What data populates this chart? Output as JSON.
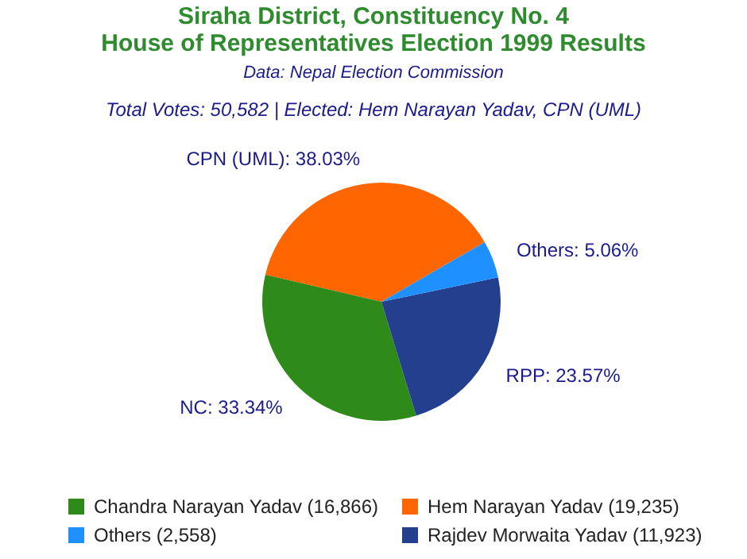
{
  "chart_data": {
    "type": "pie",
    "title": "Siraha District, Constituency No. 4\nHouse of Representatives Election 1999 Results",
    "annotations": [
      "Data: Nepal Election Commission",
      "Total Votes: 50,582 | Elected: Hem Narayan Yadav, CPN (UML)"
    ],
    "categories": [
      "Hem Narayan Yadav (19,235)",
      "Chandra Narayan Yadav (16,866)",
      "Rajdev Morwaita Yadav (11,923)",
      "Others (2,558)"
    ],
    "values": [
      38.03,
      33.34,
      23.57,
      5.06
    ],
    "value_labels": [
      "CPN (UML): 38.03%",
      "NC: 33.34%",
      "RPP: 23.57%",
      "Others: 5.06%"
    ],
    "colors": [
      "#ff6600",
      "#2e8b1a",
      "#253f8f",
      "#1e90ff"
    ],
    "legend": "bottom"
  }
}
